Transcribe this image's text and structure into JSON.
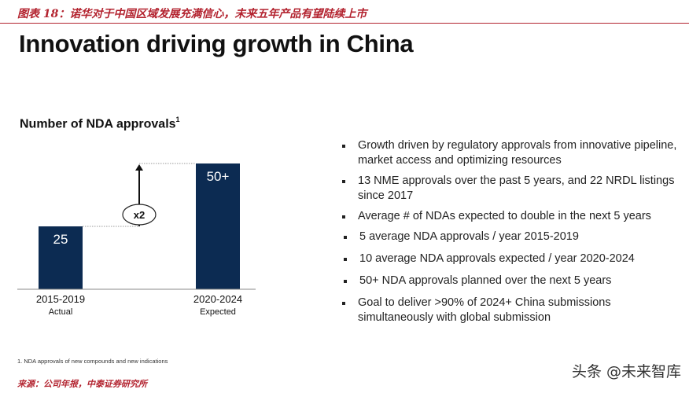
{
  "figure_caption": "图表 18：诺华对于中国区域发展充满信心，未来五年产品有望陆续上市",
  "slide_title": "Innovation driving growth in China",
  "chart_data": {
    "type": "bar",
    "title": "Number of NDA approvals",
    "title_superscript": "1",
    "categories": [
      "2015-2019",
      "2020-2024"
    ],
    "category_sublabels": [
      "Actual",
      "Expected"
    ],
    "values": [
      25,
      50
    ],
    "data_labels": [
      "25",
      "50+"
    ],
    "growth_label": "x2",
    "xlabel": "",
    "ylabel": "",
    "ylim": [
      0,
      50
    ],
    "colors": {
      "bar": "#0c2b52",
      "arrow": "#111111",
      "dotted": "#999999"
    }
  },
  "bullets": [
    {
      "level": 1,
      "text": "Growth driven by regulatory approvals from innovative pipeline, market access and optimizing resources"
    },
    {
      "level": 1,
      "text": "13 NME approvals over the past 5 years, and 22 NRDL listings since 2017"
    },
    {
      "level": 1,
      "text": "Average # of NDAs expected to double in the next 5 years"
    },
    {
      "level": 2,
      "text": "5 average NDA approvals / year 2015-2019"
    },
    {
      "level": 2,
      "text": "10 average NDA approvals expected / year 2020-2024"
    },
    {
      "level": 2,
      "text": "50+ NDA approvals planned over the next 5 years"
    },
    {
      "level": 1,
      "text": "Goal to deliver >90% of 2024+ China submissions simultaneously with global submission"
    }
  ],
  "footnote": "1. NDA approvals of new compounds and new indications",
  "source": "来源：公司年报，中泰证券研究所",
  "watermark": "头条 @未来智库"
}
